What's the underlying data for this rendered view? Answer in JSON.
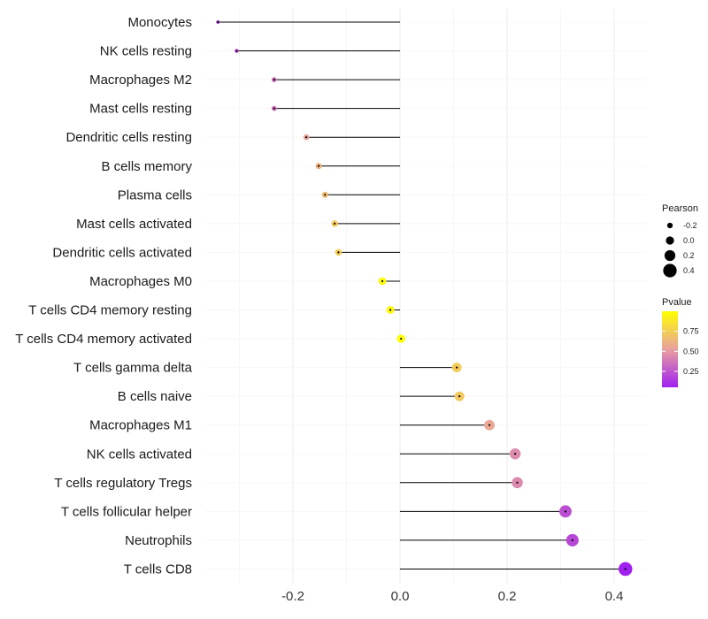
{
  "chart_data": {
    "type": "lollipop",
    "title": "",
    "xlabel": "",
    "ylabel": "",
    "xlim": [
      -0.36,
      0.46
    ],
    "x_ticks": [
      -0.2,
      0.0,
      0.2,
      0.4
    ],
    "x_tick_labels": [
      "-0.2",
      "0.0",
      "0.2",
      "0.4"
    ],
    "grid": true,
    "categories": [
      "Monocytes",
      "NK cells resting",
      "Macrophages M2",
      "Mast cells resting",
      "Dendritic cells resting",
      "B cells memory",
      "Plasma cells",
      "Mast cells activated",
      "Dendritic cells activated",
      "Macrophages M0",
      "T cells CD4 memory resting",
      "T cells CD4 memory activated",
      "T cells gamma delta",
      "B cells naive",
      "Macrophages M1",
      "NK cells activated",
      "T cells regulatory  Tregs ",
      "T cells follicular helper",
      "Neutrophils",
      "T cells CD8"
    ],
    "values": [
      -0.34,
      -0.305,
      -0.235,
      -0.235,
      -0.175,
      -0.152,
      -0.14,
      -0.122,
      -0.115,
      -0.033,
      -0.018,
      0.002,
      0.106,
      0.111,
      0.167,
      0.215,
      0.219,
      0.309,
      0.322,
      0.421
    ],
    "pvalues": [
      0.2,
      0.22,
      0.35,
      0.35,
      0.55,
      0.62,
      0.66,
      0.72,
      0.74,
      0.98,
      0.97,
      1.0,
      0.74,
      0.72,
      0.56,
      0.45,
      0.44,
      0.22,
      0.2,
      0.05
    ],
    "size_legend": {
      "title": "Pearson",
      "values": [
        -0.2,
        0.0,
        0.2,
        0.4
      ],
      "labels": [
        "-0.2",
        "0.0",
        "0.2",
        "0.4"
      ]
    },
    "color_legend": {
      "title": "Pvalue",
      "range": [
        0.05,
        1.0
      ],
      "ticks": [
        0.75,
        0.5,
        0.25
      ],
      "tick_labels": [
        "0.75",
        "0.50",
        "0.25"
      ],
      "low_color": "#a020f0",
      "mid_color": "#e8a0a0",
      "high_color": "#ffff00"
    },
    "line_color": "#000000",
    "grid_color": "#ebebeb"
  }
}
